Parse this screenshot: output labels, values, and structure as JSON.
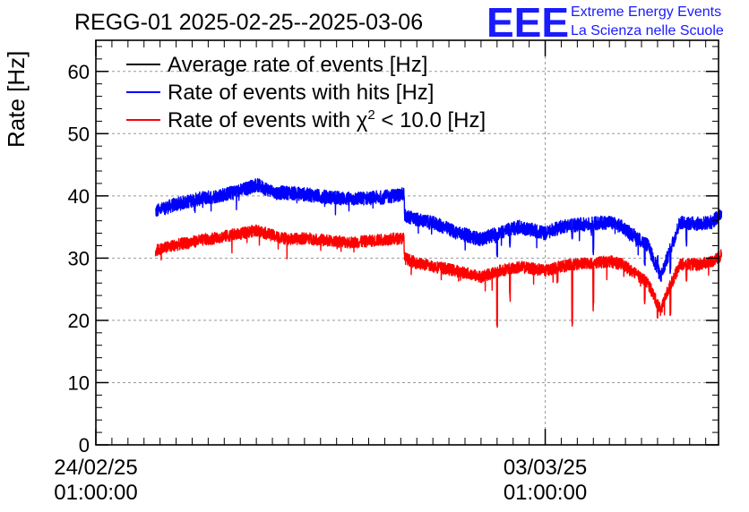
{
  "chart_data": {
    "type": "line",
    "title": "REGG-01 2025-02-25--2025-03-06",
    "ylabel": "Rate [Hz]",
    "xlabel": "",
    "ylim": [
      0,
      65
    ],
    "yticks": [
      0,
      10,
      20,
      30,
      40,
      50,
      60
    ],
    "xlim_days": [
      0,
      9.7
    ],
    "x_unit": "days since 24/02/25 01:00:00",
    "xticks": [
      {
        "day": 0,
        "date": "24/02/25",
        "time": "01:00:00"
      },
      {
        "day": 7,
        "date": "03/03/25",
        "time": "01:00:00"
      }
    ],
    "grid": true,
    "legend_position": "top-left",
    "series": [
      {
        "name": "Average rate of events [Hz]",
        "color": "#000000",
        "x": [],
        "y": []
      },
      {
        "name": "Rate of events with hits [Hz]",
        "color": "#0000ff",
        "x": [
          0.93,
          1.2,
          1.6,
          2.0,
          2.3,
          2.5,
          2.8,
          3.0,
          3.3,
          3.6,
          4.0,
          4.5,
          4.8,
          4.81,
          5.0,
          5.3,
          5.6,
          6.0,
          6.3,
          6.6,
          7.0,
          7.3,
          7.7,
          8.0,
          8.2,
          8.4,
          8.6,
          8.8,
          8.9,
          9.1,
          9.4,
          9.6,
          9.75
        ],
        "y": [
          37.5,
          38.5,
          39.5,
          40.2,
          41.0,
          41.8,
          40.5,
          40.5,
          40.2,
          39.8,
          39.5,
          39.8,
          40.3,
          36.8,
          36.2,
          35.5,
          34.2,
          33.0,
          34.2,
          35.0,
          34.0,
          35.2,
          35.5,
          35.8,
          35.0,
          33.5,
          32.0,
          27.0,
          30.0,
          35.8,
          35.5,
          35.8,
          37.2
        ]
      },
      {
        "name": "Rate of events with χ² < 10.0 [Hz]",
        "color": "#ff0000",
        "x": [
          0.93,
          1.2,
          1.6,
          2.0,
          2.3,
          2.5,
          2.8,
          3.0,
          3.3,
          3.6,
          4.0,
          4.5,
          4.8,
          4.81,
          5.0,
          5.3,
          5.6,
          6.0,
          6.3,
          6.6,
          7.0,
          7.3,
          7.7,
          8.0,
          8.2,
          8.4,
          8.6,
          8.8,
          8.9,
          9.1,
          9.4,
          9.6,
          9.75
        ],
        "y": [
          31.2,
          32.0,
          32.8,
          33.5,
          34.0,
          34.5,
          33.5,
          33.0,
          33.2,
          32.8,
          32.5,
          33.0,
          33.2,
          30.0,
          29.2,
          28.6,
          28.0,
          27.0,
          28.0,
          28.6,
          28.0,
          28.8,
          29.2,
          29.5,
          29.0,
          27.5,
          26.0,
          21.5,
          24.5,
          29.0,
          29.0,
          29.5,
          30.5
        ]
      }
    ],
    "dips": [
      {
        "day": 6.25,
        "hits": 30.0,
        "chi": 18.5
      },
      {
        "day": 6.45,
        "hits": 31.5,
        "chi": 23.0
      },
      {
        "day": 7.42,
        "hits": 32.5,
        "chi": 19.0
      },
      {
        "day": 7.75,
        "hits": 30.5,
        "chi": 21.5
      },
      {
        "day": 8.55,
        "hits": 28.0,
        "chi": 22.0
      },
      {
        "day": 8.75,
        "hits": 29.0,
        "chi": 20.0
      },
      {
        "day": 8.95,
        "hits": 27.5,
        "chi": 20.0
      },
      {
        "day": 9.2,
        "hits": 31.5,
        "chi": 26.0
      }
    ]
  },
  "brand": {
    "logo": "EEE",
    "line1": "Extreme Energy Events",
    "line2": "La Scienza nelle Scuole",
    "color": "#1a1aff"
  },
  "legend": {
    "avg": "Average rate of events [Hz]",
    "hits": "Rate of events with hits [Hz]",
    "chi_prefix": "Rate of events with ",
    "chi_symbol": "χ",
    "chi_sup": "2",
    "chi_suffix": " < 10.0 [Hz]"
  }
}
